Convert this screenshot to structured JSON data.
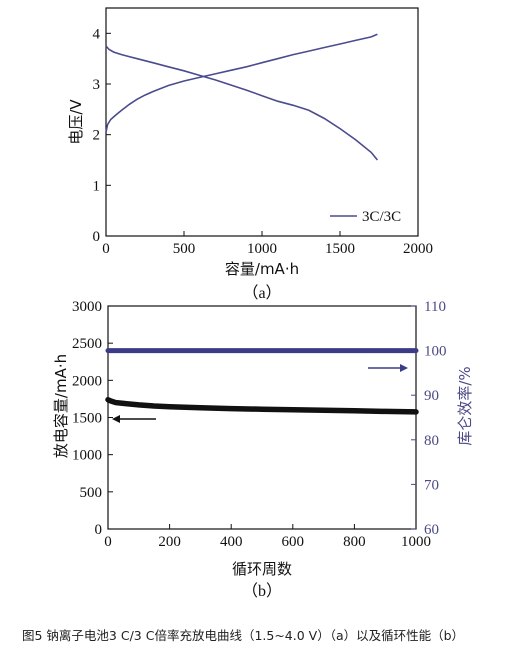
{
  "chart_data": [
    {
      "type": "line",
      "panel_label": "（a）",
      "xlabel": "容量/mA·h",
      "ylabel": "电压/V",
      "xlim": [
        0,
        2000
      ],
      "ylim": [
        0,
        4.5
      ],
      "xticks": [
        "0",
        "500",
        "1000",
        "1500",
        "2000"
      ],
      "yticks": [
        "0",
        "1",
        "2",
        "3",
        "4"
      ],
      "legend": {
        "label": "3C/3C",
        "position": "bottom-right"
      },
      "color": "#4b4b8f",
      "series": [
        {
          "role": "charge",
          "x": [
            0,
            10,
            30,
            60,
            100,
            150,
            200,
            250,
            300,
            400,
            500,
            600,
            700,
            800,
            900,
            1000,
            1100,
            1200,
            1300,
            1400,
            1500,
            1600,
            1700,
            1740
          ],
          "y": [
            2.05,
            2.2,
            2.3,
            2.38,
            2.48,
            2.6,
            2.7,
            2.78,
            2.85,
            2.97,
            3.06,
            3.13,
            3.2,
            3.27,
            3.34,
            3.42,
            3.5,
            3.58,
            3.65,
            3.72,
            3.79,
            3.86,
            3.93,
            3.98
          ]
        },
        {
          "role": "discharge",
          "x": [
            0,
            20,
            50,
            100,
            200,
            300,
            400,
            500,
            600,
            700,
            800,
            900,
            1000,
            1100,
            1200,
            1300,
            1400,
            1500,
            1600,
            1700,
            1740
          ],
          "y": [
            3.75,
            3.68,
            3.63,
            3.58,
            3.5,
            3.42,
            3.34,
            3.26,
            3.17,
            3.08,
            2.98,
            2.88,
            2.77,
            2.66,
            2.58,
            2.48,
            2.32,
            2.12,
            1.9,
            1.65,
            1.5
          ]
        }
      ]
    },
    {
      "type": "scatter",
      "panel_label": "（b）",
      "xlabel": "循环周数",
      "ylabel": "放电容量/mA·h",
      "y2label": "库仑效率/%",
      "xlim": [
        0,
        1000
      ],
      "ylim": [
        0,
        3000
      ],
      "y2lim": [
        60,
        110
      ],
      "xticks": [
        "0",
        "200",
        "400",
        "600",
        "800",
        "1000"
      ],
      "yticks": [
        "0",
        "500",
        "1000",
        "1500",
        "2000",
        "2500",
        "3000"
      ],
      "y2ticks": [
        "60",
        "70",
        "80",
        "90",
        "100",
        "110"
      ],
      "colors": {
        "capacity": "#111111",
        "efficiency": "#3b3b86",
        "right_axis": "#4a4a86"
      },
      "series": [
        {
          "role": "discharge-capacity",
          "axis": "left",
          "x": [
            0,
            10,
            25,
            50,
            100,
            150,
            200,
            300,
            400,
            500,
            600,
            700,
            800,
            900,
            1000
          ],
          "y": [
            1740,
            1720,
            1700,
            1690,
            1670,
            1655,
            1645,
            1630,
            1620,
            1612,
            1605,
            1598,
            1590,
            1582,
            1575
          ]
        },
        {
          "role": "coulombic-efficiency",
          "axis": "right",
          "x": [
            0,
            100,
            200,
            300,
            400,
            500,
            600,
            700,
            800,
            900,
            1000
          ],
          "y": [
            100,
            100,
            100,
            100,
            100,
            100,
            100,
            100,
            100,
            100,
            100
          ]
        }
      ]
    }
  ],
  "caption": "图5   钠离子电池3 C/3 C倍率充放电曲线（1.5~4.0 V）（a）以及循环性能（b）"
}
